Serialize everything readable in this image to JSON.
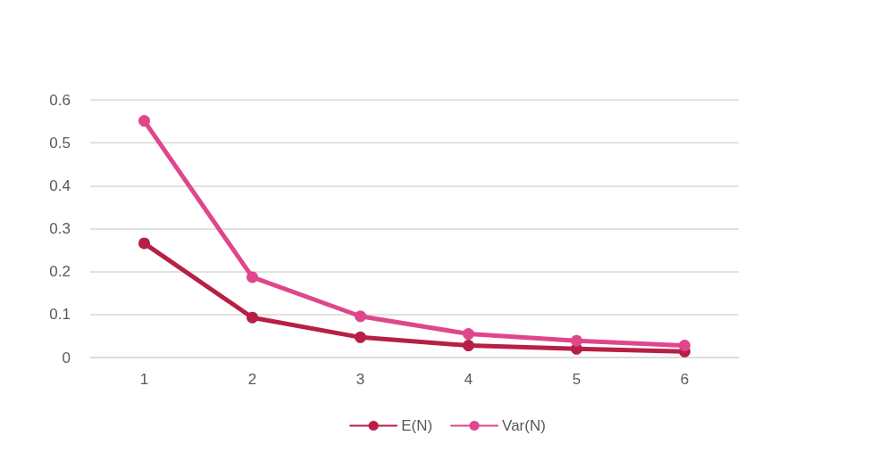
{
  "chart_data": {
    "type": "line",
    "categories": [
      "1",
      "2",
      "3",
      "4",
      "5",
      "6"
    ],
    "series": [
      {
        "name": "E(N)",
        "color": "#b81f45",
        "values": [
          0.266,
          0.093,
          0.047,
          0.028,
          0.02,
          0.014
        ]
      },
      {
        "name": "Var(N)",
        "color": "#e0468c",
        "values": [
          0.551,
          0.187,
          0.096,
          0.055,
          0.039,
          0.028
        ]
      }
    ],
    "ylim": [
      0,
      0.6
    ],
    "yticks": [
      0,
      0.1,
      0.2,
      0.3,
      0.4,
      0.5,
      0.6
    ],
    "grid": "y",
    "legend": "bottom",
    "marker": "circle",
    "line_style": "solid"
  }
}
